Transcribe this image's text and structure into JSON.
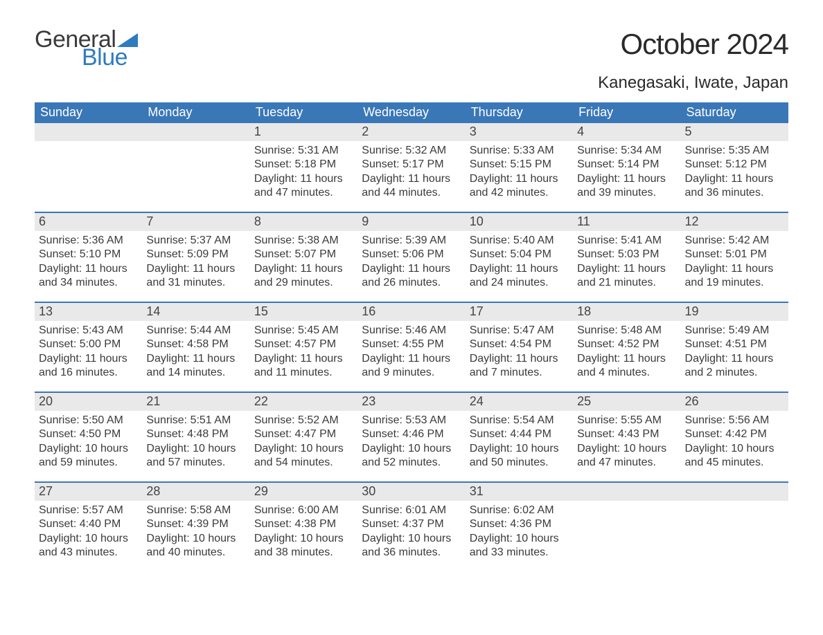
{
  "logo": {
    "general": "General",
    "blue": "Blue",
    "flag_color": "#2f7bbf"
  },
  "title": "October 2024",
  "location": "Kanegasaki, Iwate, Japan",
  "colors": {
    "header_bg": "#3a77b7",
    "header_text": "#ffffff",
    "daynum_bg": "#e9e9e9",
    "week_border": "#3a77b7",
    "body_text": "#3a3a3a"
  },
  "weekdays": [
    "Sunday",
    "Monday",
    "Tuesday",
    "Wednesday",
    "Thursday",
    "Friday",
    "Saturday"
  ],
  "weeks": [
    [
      {
        "n": "",
        "sr": "",
        "ss": "",
        "d1": "",
        "d2": ""
      },
      {
        "n": "",
        "sr": "",
        "ss": "",
        "d1": "",
        "d2": ""
      },
      {
        "n": "1",
        "sr": "Sunrise: 5:31 AM",
        "ss": "Sunset: 5:18 PM",
        "d1": "Daylight: 11 hours",
        "d2": "and 47 minutes."
      },
      {
        "n": "2",
        "sr": "Sunrise: 5:32 AM",
        "ss": "Sunset: 5:17 PM",
        "d1": "Daylight: 11 hours",
        "d2": "and 44 minutes."
      },
      {
        "n": "3",
        "sr": "Sunrise: 5:33 AM",
        "ss": "Sunset: 5:15 PM",
        "d1": "Daylight: 11 hours",
        "d2": "and 42 minutes."
      },
      {
        "n": "4",
        "sr": "Sunrise: 5:34 AM",
        "ss": "Sunset: 5:14 PM",
        "d1": "Daylight: 11 hours",
        "d2": "and 39 minutes."
      },
      {
        "n": "5",
        "sr": "Sunrise: 5:35 AM",
        "ss": "Sunset: 5:12 PM",
        "d1": "Daylight: 11 hours",
        "d2": "and 36 minutes."
      }
    ],
    [
      {
        "n": "6",
        "sr": "Sunrise: 5:36 AM",
        "ss": "Sunset: 5:10 PM",
        "d1": "Daylight: 11 hours",
        "d2": "and 34 minutes."
      },
      {
        "n": "7",
        "sr": "Sunrise: 5:37 AM",
        "ss": "Sunset: 5:09 PM",
        "d1": "Daylight: 11 hours",
        "d2": "and 31 minutes."
      },
      {
        "n": "8",
        "sr": "Sunrise: 5:38 AM",
        "ss": "Sunset: 5:07 PM",
        "d1": "Daylight: 11 hours",
        "d2": "and 29 minutes."
      },
      {
        "n": "9",
        "sr": "Sunrise: 5:39 AM",
        "ss": "Sunset: 5:06 PM",
        "d1": "Daylight: 11 hours",
        "d2": "and 26 minutes."
      },
      {
        "n": "10",
        "sr": "Sunrise: 5:40 AM",
        "ss": "Sunset: 5:04 PM",
        "d1": "Daylight: 11 hours",
        "d2": "and 24 minutes."
      },
      {
        "n": "11",
        "sr": "Sunrise: 5:41 AM",
        "ss": "Sunset: 5:03 PM",
        "d1": "Daylight: 11 hours",
        "d2": "and 21 minutes."
      },
      {
        "n": "12",
        "sr": "Sunrise: 5:42 AM",
        "ss": "Sunset: 5:01 PM",
        "d1": "Daylight: 11 hours",
        "d2": "and 19 minutes."
      }
    ],
    [
      {
        "n": "13",
        "sr": "Sunrise: 5:43 AM",
        "ss": "Sunset: 5:00 PM",
        "d1": "Daylight: 11 hours",
        "d2": "and 16 minutes."
      },
      {
        "n": "14",
        "sr": "Sunrise: 5:44 AM",
        "ss": "Sunset: 4:58 PM",
        "d1": "Daylight: 11 hours",
        "d2": "and 14 minutes."
      },
      {
        "n": "15",
        "sr": "Sunrise: 5:45 AM",
        "ss": "Sunset: 4:57 PM",
        "d1": "Daylight: 11 hours",
        "d2": "and 11 minutes."
      },
      {
        "n": "16",
        "sr": "Sunrise: 5:46 AM",
        "ss": "Sunset: 4:55 PM",
        "d1": "Daylight: 11 hours",
        "d2": "and 9 minutes."
      },
      {
        "n": "17",
        "sr": "Sunrise: 5:47 AM",
        "ss": "Sunset: 4:54 PM",
        "d1": "Daylight: 11 hours",
        "d2": "and 7 minutes."
      },
      {
        "n": "18",
        "sr": "Sunrise: 5:48 AM",
        "ss": "Sunset: 4:52 PM",
        "d1": "Daylight: 11 hours",
        "d2": "and 4 minutes."
      },
      {
        "n": "19",
        "sr": "Sunrise: 5:49 AM",
        "ss": "Sunset: 4:51 PM",
        "d1": "Daylight: 11 hours",
        "d2": "and 2 minutes."
      }
    ],
    [
      {
        "n": "20",
        "sr": "Sunrise: 5:50 AM",
        "ss": "Sunset: 4:50 PM",
        "d1": "Daylight: 10 hours",
        "d2": "and 59 minutes."
      },
      {
        "n": "21",
        "sr": "Sunrise: 5:51 AM",
        "ss": "Sunset: 4:48 PM",
        "d1": "Daylight: 10 hours",
        "d2": "and 57 minutes."
      },
      {
        "n": "22",
        "sr": "Sunrise: 5:52 AM",
        "ss": "Sunset: 4:47 PM",
        "d1": "Daylight: 10 hours",
        "d2": "and 54 minutes."
      },
      {
        "n": "23",
        "sr": "Sunrise: 5:53 AM",
        "ss": "Sunset: 4:46 PM",
        "d1": "Daylight: 10 hours",
        "d2": "and 52 minutes."
      },
      {
        "n": "24",
        "sr": "Sunrise: 5:54 AM",
        "ss": "Sunset: 4:44 PM",
        "d1": "Daylight: 10 hours",
        "d2": "and 50 minutes."
      },
      {
        "n": "25",
        "sr": "Sunrise: 5:55 AM",
        "ss": "Sunset: 4:43 PM",
        "d1": "Daylight: 10 hours",
        "d2": "and 47 minutes."
      },
      {
        "n": "26",
        "sr": "Sunrise: 5:56 AM",
        "ss": "Sunset: 4:42 PM",
        "d1": "Daylight: 10 hours",
        "d2": "and 45 minutes."
      }
    ],
    [
      {
        "n": "27",
        "sr": "Sunrise: 5:57 AM",
        "ss": "Sunset: 4:40 PM",
        "d1": "Daylight: 10 hours",
        "d2": "and 43 minutes."
      },
      {
        "n": "28",
        "sr": "Sunrise: 5:58 AM",
        "ss": "Sunset: 4:39 PM",
        "d1": "Daylight: 10 hours",
        "d2": "and 40 minutes."
      },
      {
        "n": "29",
        "sr": "Sunrise: 6:00 AM",
        "ss": "Sunset: 4:38 PM",
        "d1": "Daylight: 10 hours",
        "d2": "and 38 minutes."
      },
      {
        "n": "30",
        "sr": "Sunrise: 6:01 AM",
        "ss": "Sunset: 4:37 PM",
        "d1": "Daylight: 10 hours",
        "d2": "and 36 minutes."
      },
      {
        "n": "31",
        "sr": "Sunrise: 6:02 AM",
        "ss": "Sunset: 4:36 PM",
        "d1": "Daylight: 10 hours",
        "d2": "and 33 minutes."
      },
      {
        "n": "",
        "sr": "",
        "ss": "",
        "d1": "",
        "d2": ""
      },
      {
        "n": "",
        "sr": "",
        "ss": "",
        "d1": "",
        "d2": ""
      }
    ]
  ]
}
